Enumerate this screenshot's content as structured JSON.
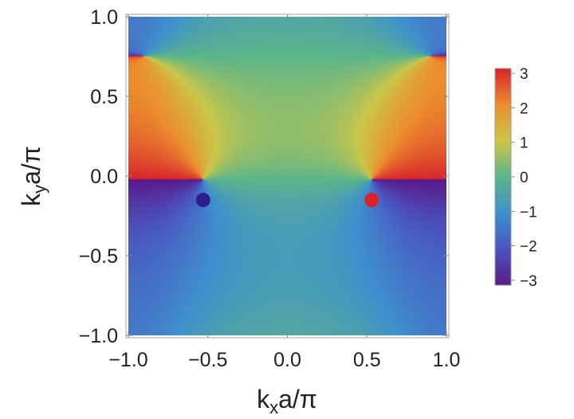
{
  "chart_data": {
    "type": "heatmap",
    "title": "",
    "xlabel": {
      "base": "k",
      "sub": "x",
      "rest": "a/π"
    },
    "ylabel": {
      "base": "k",
      "sub": "y",
      "rest": "a/π"
    },
    "xlim": [
      -1.0,
      1.0
    ],
    "ylim": [
      -1.0,
      1.0
    ],
    "xticks": [
      -1.0,
      -0.5,
      0.0,
      0.5,
      1.0
    ],
    "xtick_labels": [
      "−1.0",
      "−0.5",
      "0.0",
      "0.5",
      "1.0"
    ],
    "yticks": [
      1.0,
      0.5,
      0.0,
      -0.5,
      -1.0
    ],
    "ytick_labels": [
      "1.0",
      "0.5",
      "0.0",
      "−0.5",
      "−1.0"
    ],
    "colorbar": {
      "range": [
        -3.14159,
        3.14159
      ],
      "ticks": [
        3,
        2,
        1,
        0,
        -1,
        -2,
        -3
      ],
      "tick_labels": [
        "3",
        "2",
        "1",
        "0",
        "−1",
        "−2",
        "−3"
      ],
      "colormap": "rainbow"
    },
    "points": [
      {
        "x": -0.53,
        "y": -0.15,
        "color": "#2a1f8c"
      },
      {
        "x": 0.53,
        "y": -0.15,
        "color": "#d8232a"
      }
    ],
    "grid": false
  }
}
